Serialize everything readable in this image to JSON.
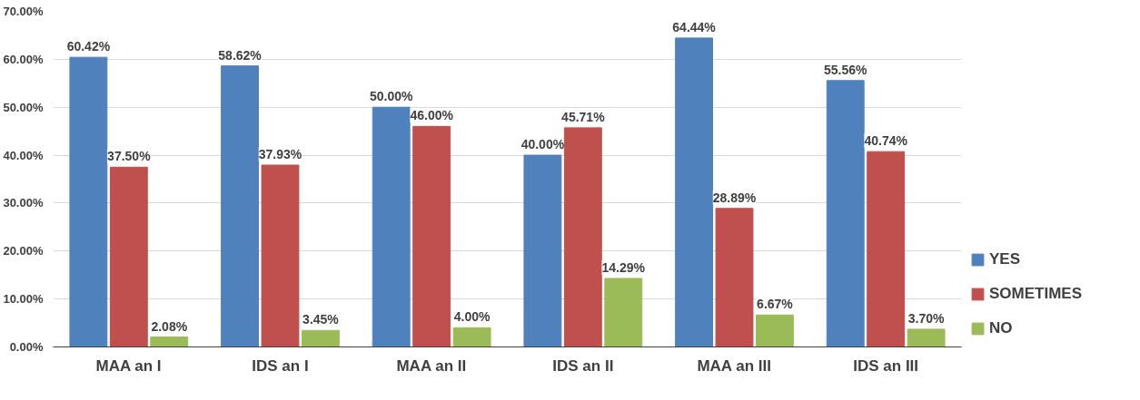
{
  "chart_data": {
    "type": "bar",
    "categories": [
      "MAA an I",
      "IDS an I",
      "MAA an II",
      "IDS an II",
      "MAA an III",
      "IDS an III"
    ],
    "series": [
      {
        "name": "YES",
        "color": "#4f81bd",
        "values": [
          60.42,
          58.62,
          50.0,
          40.0,
          64.44,
          55.56
        ],
        "value_labels": [
          "60.42%",
          "58.62%",
          "50.00%",
          "40.00%",
          "64.44%",
          "55.56%"
        ]
      },
      {
        "name": "SOMETIMES",
        "color": "#c0504d",
        "values": [
          37.5,
          37.93,
          46.0,
          45.71,
          28.89,
          40.74
        ],
        "value_labels": [
          "37.50%",
          "37.93%",
          "46.00%",
          "45.71%",
          "28.89%",
          "40.74%"
        ]
      },
      {
        "name": "NO",
        "color": "#9bbb59",
        "values": [
          2.08,
          3.45,
          4.0,
          14.29,
          6.67,
          3.7
        ],
        "value_labels": [
          "2.08%",
          "3.45%",
          "4.00%",
          "14.29%",
          "6.67%",
          "3.70%"
        ]
      }
    ],
    "ylim": [
      0,
      70
    ],
    "yticks": [
      {
        "value": 0,
        "label": "0.00%"
      },
      {
        "value": 10,
        "label": "10.00%"
      },
      {
        "value": 20,
        "label": "20.00%"
      },
      {
        "value": 30,
        "label": "30.00%"
      },
      {
        "value": 40,
        "label": "40.00%"
      },
      {
        "value": 50,
        "label": "50.00%"
      },
      {
        "value": 60,
        "label": "60.00%"
      },
      {
        "value": 70,
        "label": "70.00%"
      }
    ],
    "grid": "y",
    "legend": "right"
  }
}
